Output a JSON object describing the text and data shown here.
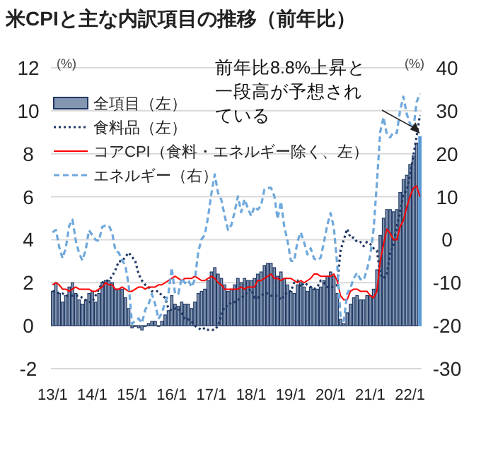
{
  "chart_data": {
    "type": "bar",
    "title": "米CPIと主な内訳項目の推移（前年比）",
    "ylabel": "(%)",
    "y2label": "(%)",
    "categories": [
      "13/1",
      null,
      null,
      null,
      null,
      null,
      null,
      null,
      null,
      null,
      null,
      null,
      "14/1",
      null,
      null,
      null,
      null,
      null,
      null,
      null,
      null,
      null,
      null,
      null,
      "15/1",
      null,
      null,
      null,
      null,
      null,
      null,
      null,
      null,
      null,
      null,
      null,
      "16/1",
      null,
      null,
      null,
      null,
      null,
      null,
      null,
      null,
      null,
      null,
      null,
      "17/1",
      null,
      null,
      null,
      null,
      null,
      null,
      null,
      null,
      null,
      null,
      null,
      "18/1",
      null,
      null,
      null,
      null,
      null,
      null,
      null,
      null,
      null,
      null,
      null,
      "19/1",
      null,
      null,
      null,
      null,
      null,
      null,
      null,
      null,
      null,
      null,
      null,
      "20/1",
      null,
      null,
      null,
      null,
      null,
      null,
      null,
      null,
      null,
      null,
      null,
      "21/1",
      null,
      null,
      null,
      null,
      null,
      null,
      null,
      null,
      null,
      null,
      null,
      "22/1",
      null,
      null,
      null
    ],
    "series": [
      {
        "name": "全項目（左）",
        "color": "#8496b0",
        "colors": [
          "#8496b0",
          "#8496b0",
          "#8496b0",
          "#8496b0",
          "#8496b0",
          "#8496b0",
          "#8496b0",
          "#8496b0",
          "#8496b0",
          "#8496b0",
          "#8496b0",
          "#8496b0",
          "#8496b0",
          "#8496b0",
          "#8496b0",
          "#8496b0",
          "#8496b0",
          "#8496b0",
          "#8496b0",
          "#8496b0",
          "#8496b0",
          "#8496b0",
          "#8496b0",
          "#8496b0",
          "#8496b0",
          "#8496b0",
          "#8496b0",
          "#8496b0",
          "#8496b0",
          "#8496b0",
          "#8496b0",
          "#8496b0",
          "#8496b0",
          "#8496b0",
          "#8496b0",
          "#8496b0",
          "#8496b0",
          "#8496b0",
          "#8496b0",
          "#8496b0",
          "#8496b0",
          "#8496b0",
          "#8496b0",
          "#8496b0",
          "#8496b0",
          "#8496b0",
          "#8496b0",
          "#8496b0",
          "#8496b0",
          "#8496b0",
          "#8496b0",
          "#8496b0",
          "#8496b0",
          "#8496b0",
          "#8496b0",
          "#8496b0",
          "#8496b0",
          "#8496b0",
          "#8496b0",
          "#8496b0",
          "#8496b0",
          "#8496b0",
          "#8496b0",
          "#8496b0",
          "#8496b0",
          "#8496b0",
          "#8496b0",
          "#8496b0",
          "#8496b0",
          "#8496b0",
          "#8496b0",
          "#8496b0",
          "#8496b0",
          "#8496b0",
          "#8496b0",
          "#8496b0",
          "#8496b0",
          "#8496b0",
          "#8496b0",
          "#8496b0",
          "#8496b0",
          "#8496b0",
          "#8496b0",
          "#8496b0",
          "#8496b0",
          "#8496b0",
          "#8496b0",
          "#8496b0",
          "#8496b0",
          "#8496b0",
          "#8496b0",
          "#8496b0",
          "#8496b0",
          "#8496b0",
          "#8496b0",
          "#8496b0",
          "#8496b0",
          "#8496b0",
          "#8496b0",
          "#8496b0",
          "#8496b0",
          "#8496b0",
          "#8496b0",
          "#8496b0",
          "#8496b0",
          "#8496b0",
          "#8496b0",
          "#8496b0",
          "#8496b0",
          "#8496b0",
          "#8496b0",
          "#5b9bd5"
        ],
        "values": [
          1.6,
          2.0,
          1.5,
          1.1,
          1.4,
          1.8,
          2.0,
          1.5,
          1.2,
          1.0,
          1.2,
          1.5,
          1.6,
          1.1,
          1.5,
          2.0,
          2.1,
          2.1,
          2.0,
          1.7,
          1.7,
          1.7,
          1.3,
          0.8,
          -0.1,
          0.0,
          -0.1,
          -0.2,
          0.0,
          0.1,
          0.2,
          0.2,
          0.0,
          0.2,
          0.5,
          0.7,
          1.4,
          1.0,
          0.9,
          1.1,
          1.0,
          1.0,
          0.8,
          1.1,
          1.5,
          1.6,
          1.7,
          2.1,
          2.5,
          2.7,
          2.4,
          2.2,
          1.9,
          1.6,
          1.7,
          1.9,
          2.2,
          2.0,
          2.2,
          2.1,
          2.1,
          2.2,
          2.4,
          2.5,
          2.8,
          2.9,
          2.9,
          2.7,
          2.3,
          2.5,
          2.2,
          1.9,
          1.6,
          1.5,
          1.9,
          2.0,
          1.8,
          1.6,
          1.8,
          1.7,
          1.7,
          1.8,
          2.1,
          2.3,
          2.5,
          2.3,
          1.5,
          0.3,
          0.1,
          0.6,
          1.0,
          1.3,
          1.4,
          1.2,
          1.2,
          1.4,
          1.4,
          1.7,
          2.6,
          4.2,
          5.0,
          5.4,
          5.4,
          5.3,
          5.4,
          6.2,
          6.8,
          7.0,
          7.5,
          7.9,
          8.5,
          8.8
        ]
      },
      {
        "name": "食料品（左）",
        "type": "line",
        "line_style": "dotted",
        "color": "#203864",
        "values": [
          1.6,
          1.6,
          1.5,
          1.5,
          1.4,
          1.4,
          1.4,
          1.4,
          1.4,
          1.3,
          1.2,
          1.1,
          1.1,
          1.4,
          1.7,
          2.0,
          2.1,
          2.1,
          2.3,
          2.6,
          3.0,
          3.0,
          3.2,
          3.4,
          3.2,
          3.0,
          2.4,
          2.1,
          1.9,
          1.8,
          1.6,
          1.6,
          1.6,
          1.4,
          1.3,
          0.8,
          0.7,
          0.8,
          0.8,
          0.6,
          0.3,
          0.3,
          0.2,
          0.0,
          -0.1,
          -0.2,
          -0.1,
          -0.2,
          -0.2,
          -0.2,
          0.0,
          0.5,
          0.9,
          0.9,
          1.1,
          1.1,
          1.2,
          1.3,
          1.4,
          1.6,
          1.7,
          1.3,
          1.3,
          1.4,
          1.5,
          1.5,
          1.4,
          1.4,
          1.4,
          1.2,
          1.4,
          1.6,
          1.6,
          2.0,
          2.1,
          1.8,
          2.0,
          1.9,
          1.8,
          1.7,
          1.8,
          2.1,
          2.0,
          1.8,
          1.8,
          1.8,
          1.9,
          3.5,
          4.0,
          4.5,
          4.1,
          4.1,
          3.9,
          3.9,
          3.7,
          3.9,
          3.8,
          3.6,
          3.5,
          2.4,
          2.2,
          2.4,
          3.4,
          3.7,
          4.6,
          5.3,
          6.1,
          6.3,
          7.0,
          7.9,
          8.8,
          9.8
        ]
      },
      {
        "name": "コアCPI（食料・エネルギー除く、左）",
        "type": "line",
        "line_style": "solid",
        "color": "#ff0000",
        "values": [
          1.9,
          2.0,
          1.9,
          1.7,
          1.7,
          1.6,
          1.7,
          1.8,
          1.7,
          1.7,
          1.7,
          1.7,
          1.6,
          1.6,
          1.7,
          1.8,
          2.0,
          1.9,
          1.9,
          1.7,
          1.7,
          1.8,
          1.7,
          1.6,
          1.6,
          1.7,
          1.8,
          1.8,
          1.7,
          1.8,
          1.8,
          1.8,
          1.9,
          1.9,
          2.0,
          2.1,
          2.2,
          2.3,
          2.2,
          2.1,
          2.2,
          2.2,
          2.2,
          2.3,
          2.2,
          2.1,
          2.1,
          2.2,
          2.3,
          2.2,
          2.0,
          1.9,
          1.7,
          1.7,
          1.7,
          1.7,
          1.7,
          1.8,
          1.7,
          1.8,
          1.8,
          1.8,
          2.1,
          2.1,
          2.2,
          2.3,
          2.4,
          2.2,
          2.2,
          2.1,
          2.2,
          2.2,
          2.2,
          2.1,
          2.0,
          2.1,
          2.0,
          2.1,
          2.2,
          2.4,
          2.4,
          2.3,
          2.3,
          2.3,
          2.3,
          2.4,
          2.1,
          1.4,
          1.2,
          1.2,
          1.6,
          1.7,
          1.7,
          1.6,
          1.6,
          1.6,
          1.4,
          1.3,
          1.6,
          3.0,
          3.8,
          4.5,
          4.3,
          4.0,
          4.0,
          4.6,
          4.9,
          5.5,
          6.0,
          6.4,
          6.5,
          6.0
        ]
      },
      {
        "name": "エネルギー（右）",
        "type": "line",
        "line_style": "dashed",
        "color": "#6fa8dc",
        "axis": "y2",
        "values": [
          1.7,
          2.3,
          -1.7,
          -4.3,
          -1.9,
          3.2,
          4.7,
          -0.2,
          -3.1,
          -4.8,
          -2.4,
          2.2,
          1.1,
          0.0,
          -0.3,
          3.0,
          3.3,
          3.3,
          1.6,
          -2.6,
          -3.0,
          -4.8,
          -6.0,
          -10.6,
          -19.6,
          -18.8,
          -18.3,
          -19.4,
          -16.3,
          -15.0,
          -12.6,
          -15.0,
          -18.4,
          -17.1,
          -14.7,
          -12.6,
          -6.5,
          -12.5,
          -12.6,
          -8.9,
          -10.1,
          -9.4,
          -11.0,
          -9.2,
          -2.9,
          0.1,
          1.1,
          5.4,
          10.8,
          15.2,
          10.9,
          9.3,
          5.6,
          2.3,
          3.4,
          6.4,
          10.1,
          6.4,
          9.4,
          7.4,
          5.5,
          7.7,
          7.0,
          7.9,
          11.7,
          12.0,
          12.1,
          10.2,
          4.8,
          8.9,
          3.1,
          -0.3,
          -4.9,
          -5.0,
          -0.4,
          1.7,
          -0.6,
          -3.4,
          -2.0,
          -4.4,
          -4.8,
          -4.2,
          -0.6,
          3.4,
          6.2,
          2.8,
          -5.7,
          -17.7,
          -18.9,
          -12.6,
          -11.2,
          -9.0,
          -7.7,
          -9.2,
          -9.4,
          -7.0,
          -3.6,
          2.4,
          13.2,
          25.1,
          28.5,
          24.5,
          23.8,
          25.0,
          24.8,
          30.0,
          33.3,
          29.3,
          27.0,
          25.6,
          32.0,
          34.0
        ]
      }
    ],
    "ylim": [
      -2,
      12
    ],
    "yticks": [
      -2,
      0,
      2,
      4,
      6,
      8,
      10,
      12
    ],
    "y2lim": [
      -30,
      40
    ],
    "y2ticks": [
      -30,
      -20,
      -10,
      0,
      10,
      20,
      30,
      40
    ],
    "grid": "y",
    "legend": "top left",
    "annotations": [
      "前年比8.8%上昇と一段高が予想されている"
    ]
  }
}
